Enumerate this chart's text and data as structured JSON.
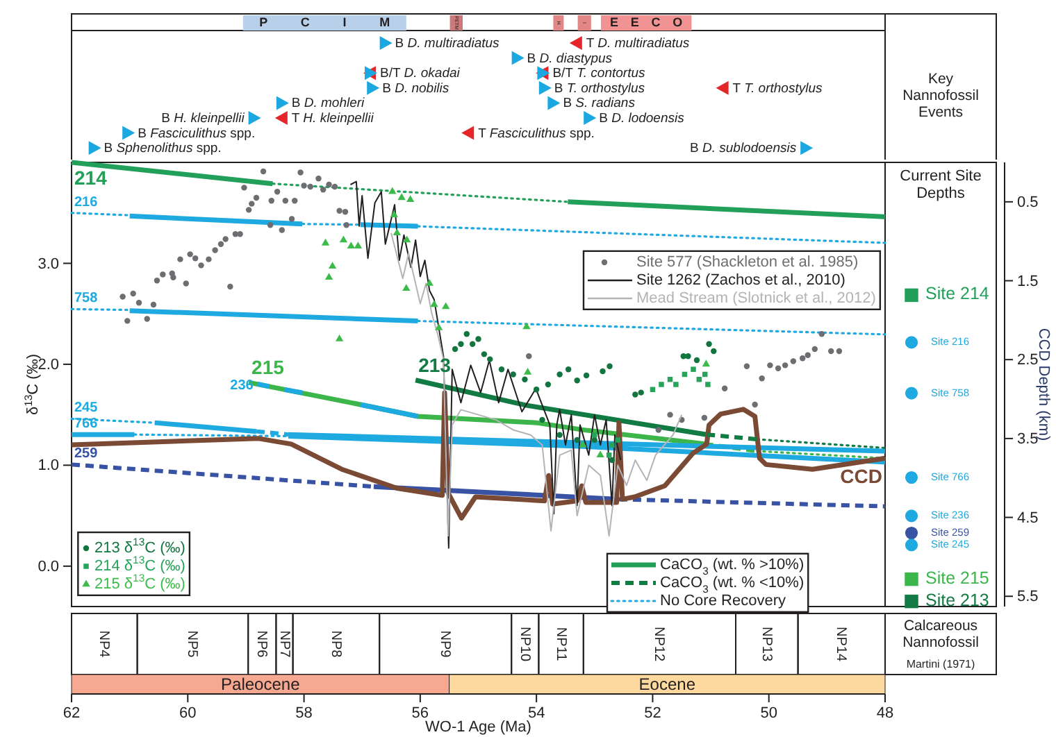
{
  "chart_data": [
    {
      "type": "line",
      "xlabel": "WO-1 Age (Ma)",
      "ylabel": "δ$^{13}$C (‰)",
      "y2label": "CCD Depth (km)",
      "xlim": [
        62,
        48
      ],
      "xticks": [
        62,
        60,
        58,
        56,
        54,
        52,
        50,
        48
      ],
      "ylim": [
        -0.4,
        4.0
      ],
      "yticks": [
        {
          "value": 0,
          "label": "0.0"
        },
        {
          "value": 1,
          "label": "1.0"
        },
        {
          "value": 2,
          "label": "2.0"
        },
        {
          "value": 3,
          "label": "3.0"
        }
      ],
      "y2lim": [
        5.63,
        0.0
      ],
      "y2ticks": [
        0.5,
        1.5,
        2.5,
        3.5,
        4.5,
        5.5
      ],
      "legend": "bottom",
      "annotations": [
        "Key Nannofossil Events",
        "Calcareous Nannofossil",
        "Martini (1971)",
        "B D. multiradiatus",
        "T D. multiradiatus",
        "B D. diastypus",
        "B/T D. okadai",
        "B/T T. contortus",
        "B D. nobilis",
        "B T. orthostylus",
        "T T. orthostylus",
        "B D. mohleri",
        "B S. radians",
        "B H. kleinpellii",
        "T H. kleinpellii",
        "B D. lodoensis",
        "B Fasciculithus spp.",
        "T Fasciculithus spp.",
        "B Sphenolithus spp.",
        "B D. sublodoensis",
        "P C I M",
        "PETM",
        "H",
        "I",
        "E E C O",
        "NP4",
        "NP5",
        "NP6",
        "NP7",
        "NP8",
        "NP9",
        "NP10",
        "NP11",
        "NP12",
        "NP13",
        "NP14",
        "Paleocene",
        "Eocene"
      ],
      "series": [
        {
          "name": "214",
          "axis": "y2",
          "color": "#22a05a",
          "line_style": "solid",
          "x": [
            62,
            58.54
          ],
          "values": [
            0.0,
            0.27
          ]
        },
        {
          "axis": "y2",
          "color": "#22a05a",
          "line_style": "dotted",
          "x": [
            58.54,
            53.46
          ],
          "values": [
            0.27,
            0.5
          ]
        },
        {
          "name": "216",
          "axis": "y2",
          "color": "#1fa9e1",
          "line_style": "dotted",
          "x": [
            62,
            61.0
          ],
          "values": [
            0.64,
            0.67
          ]
        },
        {
          "axis": "y2",
          "color": "#1fa9e1",
          "line_style": "solid",
          "x": [
            61.0,
            58.03
          ],
          "values": [
            0.68,
            0.78
          ]
        },
        {
          "axis": "y2",
          "color": "#1fa9e1",
          "line_style": "dotted",
          "x": [
            58.03,
            57.03
          ],
          "values": [
            0.78,
            0.79
          ]
        },
        {
          "axis": "y2",
          "color": "#1fa9e1",
          "line_style": "solid",
          "x": [
            57.03,
            56.04
          ],
          "values": [
            0.79,
            0.81
          ]
        },
        {
          "name": "758",
          "axis": "y2",
          "color": "#1fa9e1",
          "line_style": "dotted",
          "x": [
            62,
            61.0
          ],
          "values": [
            1.86,
            1.87
          ]
        },
        {
          "axis": "y2",
          "color": "#1fa9e1",
          "line_style": "solid",
          "x": [
            61.0,
            56.04
          ],
          "values": [
            1.88,
            2.01
          ]
        },
        {
          "axis": "y2",
          "color": "#1fa9e1",
          "line_style": "dotted",
          "x": [
            56.04,
            48
          ],
          "values": [
            2.01,
            2.18
          ]
        },
        {
          "name": "215",
          "axis": "y2",
          "color": "#3cb54a",
          "line_style": "solid",
          "x": [
            58.95,
            57.03,
            56.04,
            54.0,
            53.2,
            51.1
          ],
          "values": [
            2.79,
            3.07,
            3.22,
            3.3,
            3.39,
            3.57
          ]
        },
        {
          "axis": "y2",
          "color": "#3cb54a",
          "line_style": "dashed",
          "x": [
            51.1,
            50.2
          ],
          "values": [
            3.57,
            3.66
          ]
        },
        {
          "axis": "y2",
          "color": "#3cb54a",
          "line_style": "dotted",
          "x": [
            50.2,
            48
          ],
          "values": [
            3.66,
            3.75
          ]
        },
        {
          "name": "236",
          "axis": "y2",
          "color": "#1fa9e1",
          "line_style": "solid",
          "x": [
            58.8,
            58.6
          ],
          "values": [
            2.81,
            2.84
          ]
        },
        {
          "axis": "y2",
          "color": "#1fa9e1",
          "line_style": "solid",
          "x": [
            58.34,
            58.03
          ],
          "values": [
            2.88,
            2.92
          ]
        },
        {
          "axis": "y2",
          "color": "#1fa9e1",
          "line_style": "solid",
          "x": [
            57.03,
            56.04
          ],
          "values": [
            3.07,
            3.22
          ]
        },
        {
          "name": "213",
          "axis": "y2",
          "color": "#127a43",
          "line_style": "solid",
          "x": [
            56.08,
            54.17,
            51.07
          ],
          "values": [
            2.76,
            3.08,
            3.45
          ]
        },
        {
          "axis": "y2",
          "color": "#127a43",
          "line_style": "dotted",
          "x": [
            50.2,
            48
          ],
          "values": [
            3.51,
            3.62
          ]
        },
        {
          "name": "245",
          "axis": "y2",
          "color": "#1fa9e1",
          "line_style": "dotted",
          "x": [
            62,
            60.57
          ],
          "values": [
            3.25,
            3.3
          ]
        },
        {
          "axis": "y2",
          "color": "#1fa9e1",
          "line_style": "solid",
          "x": [
            60.57,
            58.82
          ],
          "values": [
            3.3,
            3.41
          ]
        },
        {
          "axis": "y2",
          "color": "#1fa9e1",
          "line_style": "dashed",
          "x": [
            58.82,
            58.27
          ],
          "values": [
            3.41,
            3.45
          ]
        },
        {
          "axis": "y2",
          "color": "#1fa9e1",
          "line_style": "solid",
          "x": [
            58.27,
            48
          ],
          "values": [
            3.45,
            3.66
          ]
        },
        {
          "name": "766",
          "axis": "y2",
          "color": "#1fa9e1",
          "line_style": "solid",
          "x": [
            62,
            60.92
          ],
          "values": [
            3.45,
            3.45
          ]
        },
        {
          "axis": "y2",
          "color": "#1fa9e1",
          "line_style": "dotted",
          "x": [
            60.92,
            58.27
          ],
          "values": [
            3.45,
            3.47
          ]
        },
        {
          "axis": "y2",
          "color": "#1fa9e1",
          "line_style": "solid",
          "x": [
            58.27,
            53.2,
            48
          ],
          "values": [
            3.47,
            3.6,
            3.8
          ]
        },
        {
          "name": "259",
          "axis": "y2",
          "color": "#3953a4",
          "line_style": "dashed",
          "x": [
            62,
            56.8
          ],
          "values": [
            3.83,
            4.11
          ]
        },
        {
          "axis": "y2",
          "color": "#3953a4",
          "line_style": "solid",
          "x": [
            56.8,
            52.58
          ],
          "values": [
            4.11,
            4.27
          ]
        },
        {
          "axis": "y2",
          "color": "#3953a4",
          "line_style": "dashed",
          "x": [
            52.58,
            48
          ],
          "values": [
            4.27,
            4.36
          ]
        },
        {
          "name": "CCD",
          "axis": "y2",
          "color": "#7b4a35",
          "line_style": "solid",
          "x": [
            48,
            49.25,
            50.05,
            50.16,
            50.24,
            50.44,
            50.83,
            51.03,
            51.07,
            51.31,
            51.79,
            52.31,
            52.52,
            52.58,
            52.62,
            53.15,
            53.22,
            53.3,
            53.72,
            53.79,
            53.86,
            55.05,
            55.29,
            55.52,
            55.58,
            55.62,
            56.4,
            57.35,
            58.22,
            58.78,
            62
          ],
          "values": [
            3.75,
            3.89,
            3.83,
            3.75,
            3.22,
            3.13,
            3.19,
            3.33,
            3.57,
            3.69,
            4.1,
            4.24,
            4.27,
            3.3,
            4.31,
            4.31,
            4.1,
            4.29,
            4.33,
            3.97,
            4.29,
            4.24,
            4.51,
            4.19,
            2.92,
            4.22,
            4.13,
            3.89,
            3.57,
            3.5,
            3.58
          ]
        },
        {
          "name": "Site 577 (Shackleton et al. 1985)",
          "type": "scatter",
          "marker": "circle",
          "color": "#6d6e71",
          "x": [
            61.12,
            61.04,
            60.94,
            60.84,
            60.7,
            60.59,
            60.53,
            60.43,
            60.27,
            60.25,
            60.13,
            60.03,
            59.96,
            59.87,
            59.77,
            59.64,
            59.53,
            59.43,
            59.35,
            59.27,
            59.18,
            59.1,
            59.03,
            58.95,
            58.9,
            58.82,
            58.7,
            58.58,
            58.56,
            58.46,
            58.38,
            58.32,
            58.21,
            58.16,
            58.06,
            58.0,
            57.89,
            57.75,
            57.67,
            57.57,
            57.47,
            57.39,
            57.29,
            57.27,
            54.13,
            51.9,
            51.7,
            51.5,
            51.11,
            50.76,
            50.38,
            50.24,
            50.12,
            49.98,
            49.84,
            49.72,
            49.58,
            49.42,
            49.33,
            49.21,
            49.09,
            48.93,
            48.79
          ],
          "values": [
            2.67,
            2.43,
            2.7,
            2.61,
            2.45,
            2.59,
            2.83,
            2.89,
            2.9,
            2.86,
            3.04,
            2.8,
            3.09,
            3.05,
            2.98,
            3.04,
            3.13,
            3.19,
            3.24,
            2.77,
            3.29,
            3.29,
            3.75,
            3.53,
            3.59,
            3.65,
            3.91,
            3.38,
            3.62,
            3.71,
            3.33,
            3.62,
            3.44,
            3.62,
            3.9,
            3.77,
            3.76,
            3.84,
            3.73,
            3.78,
            3.76,
            3.52,
            3.51,
            3.38,
            2.08,
            1.35,
            1.5,
            1.45,
            1.47,
            1.76,
            1.98,
            1.6,
            1.86,
            1.99,
            1.96,
            1.99,
            2.03,
            2.06,
            2.09,
            2.15,
            2.3,
            2.13,
            2.13
          ]
        },
        {
          "name": "Site 1262 (Zachos et al., 2010)",
          "color": "#231f20",
          "x": [
            57.2,
            57.1,
            57.05,
            57.0,
            56.9,
            56.78,
            56.67,
            56.6,
            56.44,
            56.36,
            56.28,
            56.16,
            56.08,
            56.0,
            55.92,
            55.84,
            55.76,
            55.68,
            55.6,
            55.51,
            55.45,
            55.3,
            55.13,
            54.96,
            54.81,
            54.65,
            54.49,
            54.25,
            54.01,
            53.77,
            53.7,
            53.65,
            53.6,
            53.5,
            53.4,
            53.3,
            53.25,
            53.1,
            53.0,
            52.9,
            52.8,
            52.7,
            52.65,
            52.55
          ],
          "values": [
            3.78,
            3.81,
            3.37,
            3.67,
            3.05,
            3.6,
            3.71,
            3.19,
            3.58,
            3.03,
            3.28,
            2.96,
            3.23,
            2.87,
            3.03,
            2.73,
            2.64,
            2.36,
            2.08,
            0.18,
            1.95,
            1.62,
            1.99,
            1.72,
            2.04,
            1.62,
            1.95,
            1.53,
            1.76,
            1.4,
            0.52,
            1.4,
            1.55,
            1.2,
            1.5,
            0.6,
            1.4,
            1.1,
            1.5,
            1.2,
            1.45,
            0.6,
            1.3,
            1.05
          ]
        },
        {
          "name": "Mead Stream (Slotnick et al., 2012)",
          "color": "#b4b4b8",
          "x": [
            56.5,
            56.3,
            56.2,
            56.0,
            55.9,
            55.8,
            55.7,
            55.6,
            55.52,
            55.45,
            55.3,
            55.0,
            54.7,
            54.4,
            54.1,
            53.9,
            53.75,
            53.6,
            53.4,
            53.3,
            53.1,
            52.9,
            52.75,
            52.6,
            52.45,
            52.3,
            52.1,
            51.95,
            51.8,
            51.65,
            51.5
          ],
          "values": [
            3.3,
            2.85,
            3.1,
            2.6,
            2.8,
            2.5,
            2.3,
            2.05,
            0.3,
            1.4,
            1.55,
            1.5,
            1.45,
            1.35,
            1.3,
            1.2,
            0.35,
            1.1,
            1.15,
            0.5,
            1.0,
            0.9,
            0.3,
            1.0,
            0.8,
            1.05,
            0.85,
            1.1,
            1.2,
            1.3,
            1.5
          ]
        },
        {
          "name": "213 δ$^{13}$C (‰)",
          "type": "scatter",
          "marker": "circle",
          "color": "#12753f",
          "x": [
            55.4,
            55.3,
            55.2,
            55.1,
            55.0,
            54.9,
            54.8,
            54.6,
            54.4,
            54.2,
            54.0,
            53.8,
            53.6,
            53.45,
            53.3,
            53.14,
            52.86,
            52.74,
            51.47,
            51.39,
            51.24,
            51.03,
            50.95,
            53.9,
            53.6,
            53.3,
            53.0,
            52.7,
            52.3,
            52.2
          ],
          "values": [
            2.15,
            2.2,
            2.3,
            2.2,
            2.25,
            2.1,
            2.05,
            1.95,
            1.9,
            1.85,
            1.75,
            1.8,
            1.9,
            1.95,
            1.84,
            1.89,
            1.93,
            1.98,
            2.08,
            2.08,
            2.04,
            2.2,
            2.13,
            1.45,
            1.3,
            1.25,
            1.25,
            1.05,
            1.7,
            1.72
          ]
        },
        {
          "name": "214 δ$^{13}$C (‰)",
          "type": "scatter",
          "marker": "square",
          "color": "#27a35a",
          "x": [
            52.0,
            51.85,
            51.7,
            51.6,
            51.45,
            51.3,
            51.2,
            51.1,
            51.05,
            53.0,
            52.75,
            52.7,
            52.6
          ],
          "values": [
            1.75,
            1.8,
            1.85,
            1.8,
            1.9,
            1.95,
            1.85,
            1.9,
            1.8,
            1.3,
            1.1,
            1.2,
            1.25
          ]
        },
        {
          "name": "215 δ$^{13}$C (‰)",
          "type": "scatter",
          "marker": "triangle",
          "color": "#3dbb4a",
          "x": [
            57.63,
            57.57,
            57.51,
            57.39,
            57.32,
            57.19,
            57.07,
            56.48,
            56.32,
            56.17,
            56.45,
            56.4,
            56.23,
            56.24,
            55.84,
            55.76,
            55.68,
            55.56,
            54.17,
            54.15,
            51.08,
            53.2,
            52.9
          ],
          "values": [
            3.2,
            2.86,
            2.97,
            2.25,
            3.23,
            3.17,
            3.17,
            3.71,
            3.65,
            3.63,
            3.48,
            3.3,
            3.23,
            2.75,
            2.8,
            2.59,
            2.36,
            2.57,
            2.37,
            1.92,
            2.0,
            1.2,
            1.1
          ]
        },
        {
          "name": "CaCO$_{3}$ (wt. % >10%)",
          "axis": "y2",
          "color": "#22a05a",
          "line_style": "solid",
          "x": [
            53.46,
            48
          ],
          "values": [
            0.5,
            0.69
          ]
        },
        {
          "name": "CaCO$_{3}$ (wt. % <10%)",
          "axis": "y2",
          "color": "#127a43",
          "line_style": "dashed",
          "x": [
            51.07,
            50.2
          ],
          "values": [
            3.45,
            3.51
          ]
        },
        {
          "name": "No Core Recovery",
          "axis": "y2",
          "color": "#1fa9e1",
          "line_style": "dotted",
          "x": [
            56.04,
            48
          ],
          "values": [
            0.81,
            1.02
          ]
        }
      ]
    },
    {
      "type": "other",
      "title": "Current Site Depths",
      "annotations": [
        "Site 214",
        "Site 216",
        "Site 758",
        "Site 766",
        "Site 236",
        "Site 259",
        "Site 245",
        "Site 215",
        "Site 213"
      ]
    }
  ]
}
